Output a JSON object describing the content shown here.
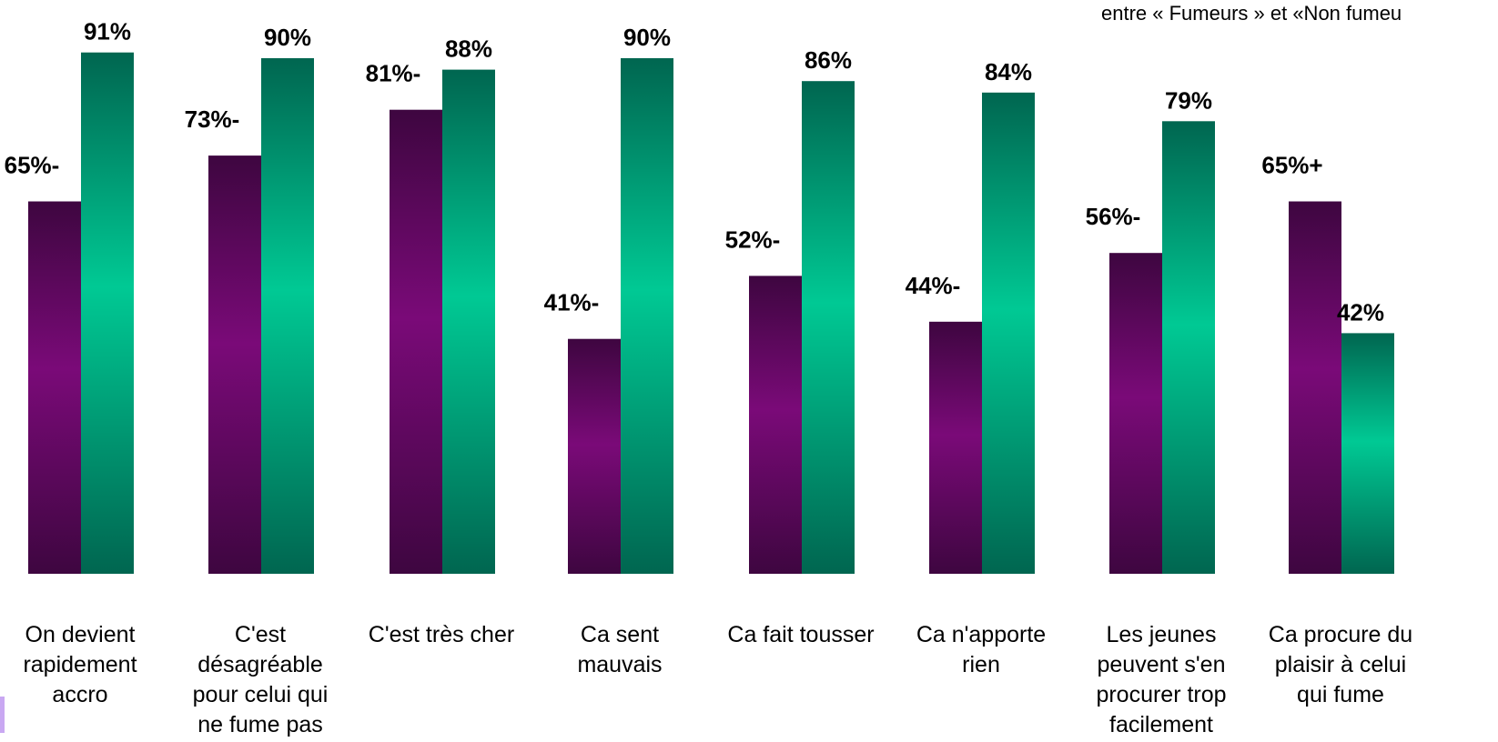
{
  "note": "entre « Fumeurs » et «Non fumeu",
  "chart_data": {
    "type": "bar",
    "categories": [
      "On devient rapidement accro",
      "C'est désagréable pour celui qui ne fume pas",
      "C'est très cher",
      "Ca sent mauvais",
      "Ca fait tousser",
      "Ca n'apporte rien",
      "Les jeunes peuvent s'en procurer trop facilement",
      "Ca procure du plaisir à celui qui fume"
    ],
    "series": [
      {
        "values": [
          65,
          73,
          81,
          41,
          52,
          44,
          56,
          65
        ],
        "labels": [
          "65%-",
          "73%-",
          "81%-",
          "41%-",
          "52%-",
          "44%-",
          "56%-",
          "65%+"
        ],
        "color": "#7a0a78"
      },
      {
        "values": [
          91,
          90,
          88,
          90,
          86,
          84,
          79,
          42
        ],
        "labels": [
          "91%",
          "90%",
          "88%",
          "90%",
          "86%",
          "84%",
          "79%",
          "42%"
        ],
        "color": "#00c994"
      }
    ],
    "ylim": [
      0,
      100
    ],
    "grid": false
  }
}
